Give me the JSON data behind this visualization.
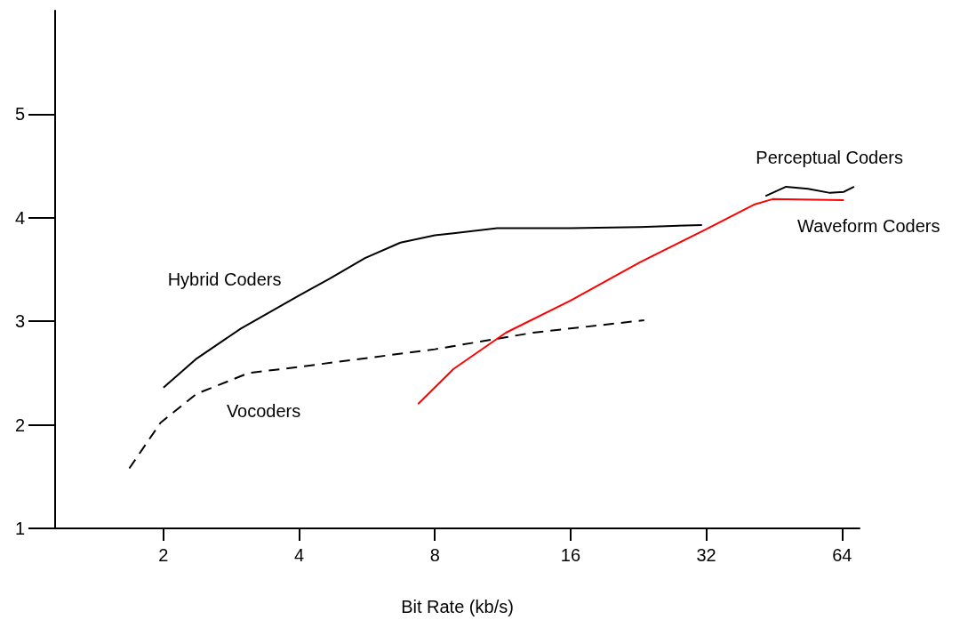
{
  "chart_data": {
    "type": "line",
    "xlabel": "Bit Rate (kb/s)",
    "log": "x",
    "xlim": [
      1.15,
      70
    ],
    "xticks": [
      2,
      4,
      8,
      16,
      32,
      64
    ],
    "ylim": [
      1,
      6
    ],
    "yticks": [
      1,
      2,
      3,
      4,
      5
    ],
    "grid": false,
    "legend": false,
    "marker": "none",
    "series": [
      {
        "name": "Hybrid Coders",
        "color": "#000000",
        "line_style": "solid",
        "x": [
          2,
          2.37,
          2.97,
          4,
          4.67,
          5.6,
          6.71,
          8,
          11,
          16,
          22.8,
          31.3
        ],
        "values": [
          2.36,
          2.64,
          2.93,
          3.25,
          3.41,
          3.61,
          3.76,
          3.83,
          3.9,
          3.9,
          3.91,
          3.93
        ]
      },
      {
        "name": "Vocoders",
        "color": "#000000",
        "line_style": "dashed",
        "x": [
          1.68,
          1.97,
          2.37,
          3.09,
          4,
          8,
          13.2,
          23.3
        ],
        "values": [
          1.58,
          2.02,
          2.3,
          2.5,
          2.56,
          2.73,
          2.89,
          3.01
        ]
      },
      {
        "name": "Waveform Coders",
        "color": "#ff0000",
        "line_style": "solid",
        "x": [
          7.34,
          8.8,
          11.5,
          16,
          22.8,
          32,
          41,
          44.9,
          64.6
        ],
        "values": [
          2.2,
          2.54,
          2.89,
          3.2,
          3.57,
          3.89,
          4.13,
          4.18,
          4.17
        ]
      },
      {
        "name": "Perceptual Coders",
        "color": "#000000",
        "line_style": "solid",
        "x": [
          43.3,
          48.1,
          53.8,
          60.2,
          64.6,
          68.1
        ],
        "values": [
          4.21,
          4.3,
          4.28,
          4.24,
          4.25,
          4.3
        ]
      }
    ]
  }
}
